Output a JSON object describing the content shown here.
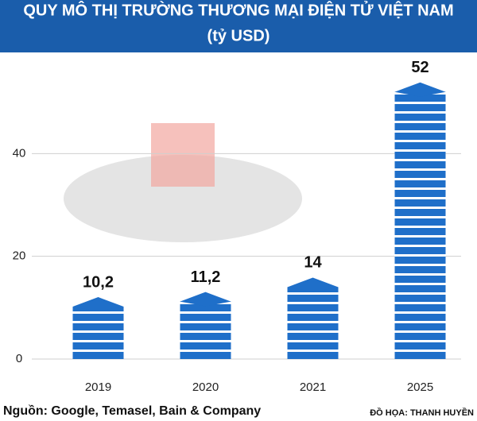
{
  "chart_data": {
    "type": "bar",
    "title": "QUY MÔ THỊ TRƯỜNG THƯƠNG MẠI ĐIỆN TỬ VIỆT NAM",
    "subtitle": "(tỷ USD)",
    "categories": [
      "2019",
      "2020",
      "2021",
      "2025"
    ],
    "values": [
      10.2,
      11.2,
      14,
      52
    ],
    "value_labels": [
      "10,2",
      "11,2",
      "14",
      "52"
    ],
    "color": "#1f6fc9",
    "ylim": [
      0,
      60
    ],
    "yticks": [
      0,
      20,
      40
    ],
    "grid": true,
    "source": "Nguồn: Google, Temasel, Bain & Company",
    "credit": "ĐỒ HỌA: THANH HUYỀN"
  }
}
